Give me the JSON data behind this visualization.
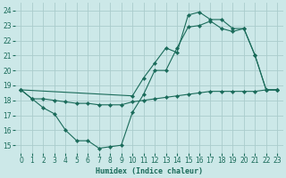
{
  "xlabel": "Humidex (Indice chaleur)",
  "xlim": [
    -0.5,
    23.5
  ],
  "ylim": [
    14.5,
    24.5
  ],
  "yticks": [
    15,
    16,
    17,
    18,
    19,
    20,
    21,
    22,
    23,
    24
  ],
  "xticks": [
    0,
    1,
    2,
    3,
    4,
    5,
    6,
    7,
    8,
    9,
    10,
    11,
    12,
    13,
    14,
    15,
    16,
    17,
    18,
    19,
    20,
    21,
    22,
    23
  ],
  "bg_color": "#cce8e8",
  "grid_color": "#aacccc",
  "line_color": "#1a6b5a",
  "line1_x": [
    0,
    1,
    2,
    3,
    4,
    5,
    6,
    7,
    8,
    9,
    10,
    11,
    12,
    13,
    14,
    15,
    16,
    17,
    18,
    19,
    20,
    21,
    22,
    23
  ],
  "line1_y": [
    18.7,
    18.1,
    17.5,
    17.1,
    16.0,
    15.3,
    15.3,
    14.8,
    14.9,
    15.0,
    17.2,
    18.4,
    20.0,
    20.0,
    21.5,
    22.9,
    23.0,
    23.3,
    22.8,
    22.6,
    22.8,
    21.0,
    18.7,
    18.7
  ],
  "line2_x": [
    0,
    1,
    2,
    3,
    4,
    5,
    6,
    7,
    8,
    9,
    10,
    11,
    12,
    13,
    14,
    15,
    16,
    17,
    18,
    19,
    20,
    21,
    22,
    23
  ],
  "line2_y": [
    18.7,
    18.1,
    18.1,
    18.0,
    17.9,
    17.8,
    17.8,
    17.7,
    17.7,
    17.7,
    17.9,
    18.0,
    18.1,
    18.2,
    18.3,
    18.4,
    18.5,
    18.6,
    18.6,
    18.6,
    18.6,
    18.6,
    18.7,
    18.7
  ],
  "line3_x": [
    0,
    10,
    11,
    12,
    13,
    14,
    15,
    16,
    17,
    18,
    19,
    20,
    21,
    22,
    23
  ],
  "line3_y": [
    18.7,
    18.3,
    19.5,
    20.5,
    21.5,
    21.2,
    23.7,
    23.9,
    23.4,
    23.4,
    22.8,
    22.8,
    21.0,
    18.7,
    18.7
  ]
}
